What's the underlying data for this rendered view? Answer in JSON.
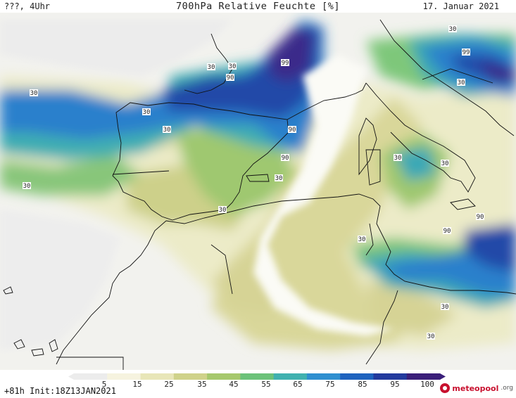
{
  "header": {
    "left": "???, 4Uhr",
    "title": "700hPa Relative Feuchte [%]",
    "date": "17. Januar 2021"
  },
  "footer": {
    "init": "+81h Init:18Z13JAN2021",
    "logo_main": "meteopool",
    "logo_tld": ".org"
  },
  "legend": {
    "ticks": [
      "5",
      "15",
      "25",
      "35",
      "45",
      "55",
      "65",
      "75",
      "85",
      "95",
      "100"
    ],
    "colors": [
      "#ececec",
      "#f6f3df",
      "#e8e6b8",
      "#cfd28a",
      "#a6c86d",
      "#6cc27a",
      "#40b1b0",
      "#2f8fd0",
      "#1f63bf",
      "#233a9e",
      "#3a1f7a"
    ]
  },
  "contour_labels": [
    {
      "text": "30"
    },
    {
      "text": "30"
    },
    {
      "text": "30"
    },
    {
      "text": "30"
    },
    {
      "text": "90"
    },
    {
      "text": "30"
    },
    {
      "text": "99"
    },
    {
      "text": "90"
    },
    {
      "text": "90"
    },
    {
      "text": "30"
    },
    {
      "text": "30"
    },
    {
      "text": "90"
    },
    {
      "text": "99"
    },
    {
      "text": "30"
    },
    {
      "text": "30"
    },
    {
      "text": "30"
    },
    {
      "text": "90"
    },
    {
      "text": "30"
    },
    {
      "text": "30"
    },
    {
      "text": "30"
    },
    {
      "text": "30"
    },
    {
      "text": "30"
    }
  ]
}
